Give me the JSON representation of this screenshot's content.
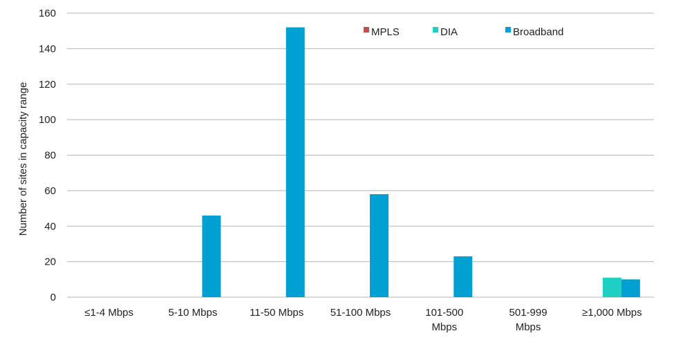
{
  "chart_data": {
    "type": "bar",
    "y_label": "Number of sites in capacity range",
    "categories": [
      "≤1-4 Mbps",
      "5-10 Mbps",
      "11-50 Mbps",
      "51-100 Mbps",
      "101-500\nMbps",
      "501-999\nMbps",
      "≥1,000 Mbps"
    ],
    "series": [
      {
        "name": "MPLS",
        "color": "#c0504d",
        "values": [
          0,
          0,
          0,
          0,
          0,
          0,
          0
        ]
      },
      {
        "name": "DIA",
        "color": "#1ecfc4",
        "values": [
          0,
          0,
          0,
          0,
          0,
          0,
          11
        ]
      },
      {
        "name": "Broadband",
        "color": "#00a0d2",
        "values": [
          0,
          46,
          152,
          58,
          23,
          0,
          10
        ]
      }
    ],
    "ylim": [
      0,
      160
    ],
    "yticks": [
      0,
      20,
      40,
      60,
      80,
      100,
      120,
      140,
      160
    ],
    "grid": true,
    "legend": "top"
  }
}
